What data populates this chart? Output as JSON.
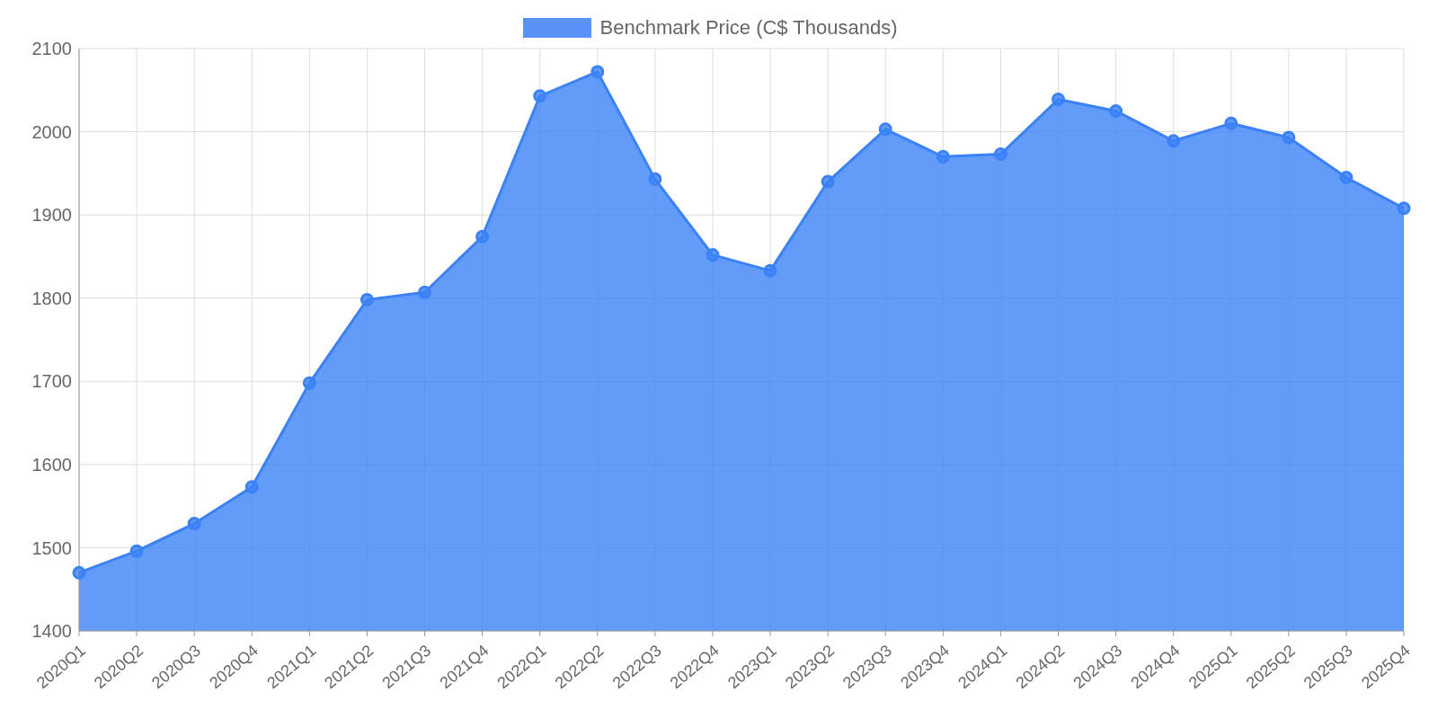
{
  "chart_data": {
    "type": "area",
    "categories": [
      "2020Q1",
      "2020Q2",
      "2020Q3",
      "2020Q4",
      "2021Q1",
      "2021Q2",
      "2021Q3",
      "2021Q4",
      "2022Q1",
      "2022Q2",
      "2022Q3",
      "2022Q4",
      "2023Q1",
      "2023Q2",
      "2023Q3",
      "2023Q4",
      "2024Q1",
      "2024Q2",
      "2024Q3",
      "2024Q4",
      "2025Q1",
      "2025Q2",
      "2025Q3",
      "2025Q4"
    ],
    "series": [
      {
        "name": "Benchmark Price (C$ Thousands)",
        "color": "#3b82f6",
        "values": [
          1470,
          1496,
          1529,
          1573,
          1698,
          1798,
          1807,
          1874,
          2043,
          2072,
          1943,
          1852,
          1833,
          1940,
          2003,
          1970,
          1973,
          2039,
          2025,
          1989,
          2010,
          1993,
          1945,
          1908
        ]
      }
    ],
    "ylim": [
      1400,
      2100
    ],
    "yticks": [
      1400,
      1500,
      1600,
      1700,
      1800,
      1900,
      2000,
      2100
    ],
    "grid": true,
    "legend": "top",
    "marker": "circle",
    "line_style": "solid"
  }
}
